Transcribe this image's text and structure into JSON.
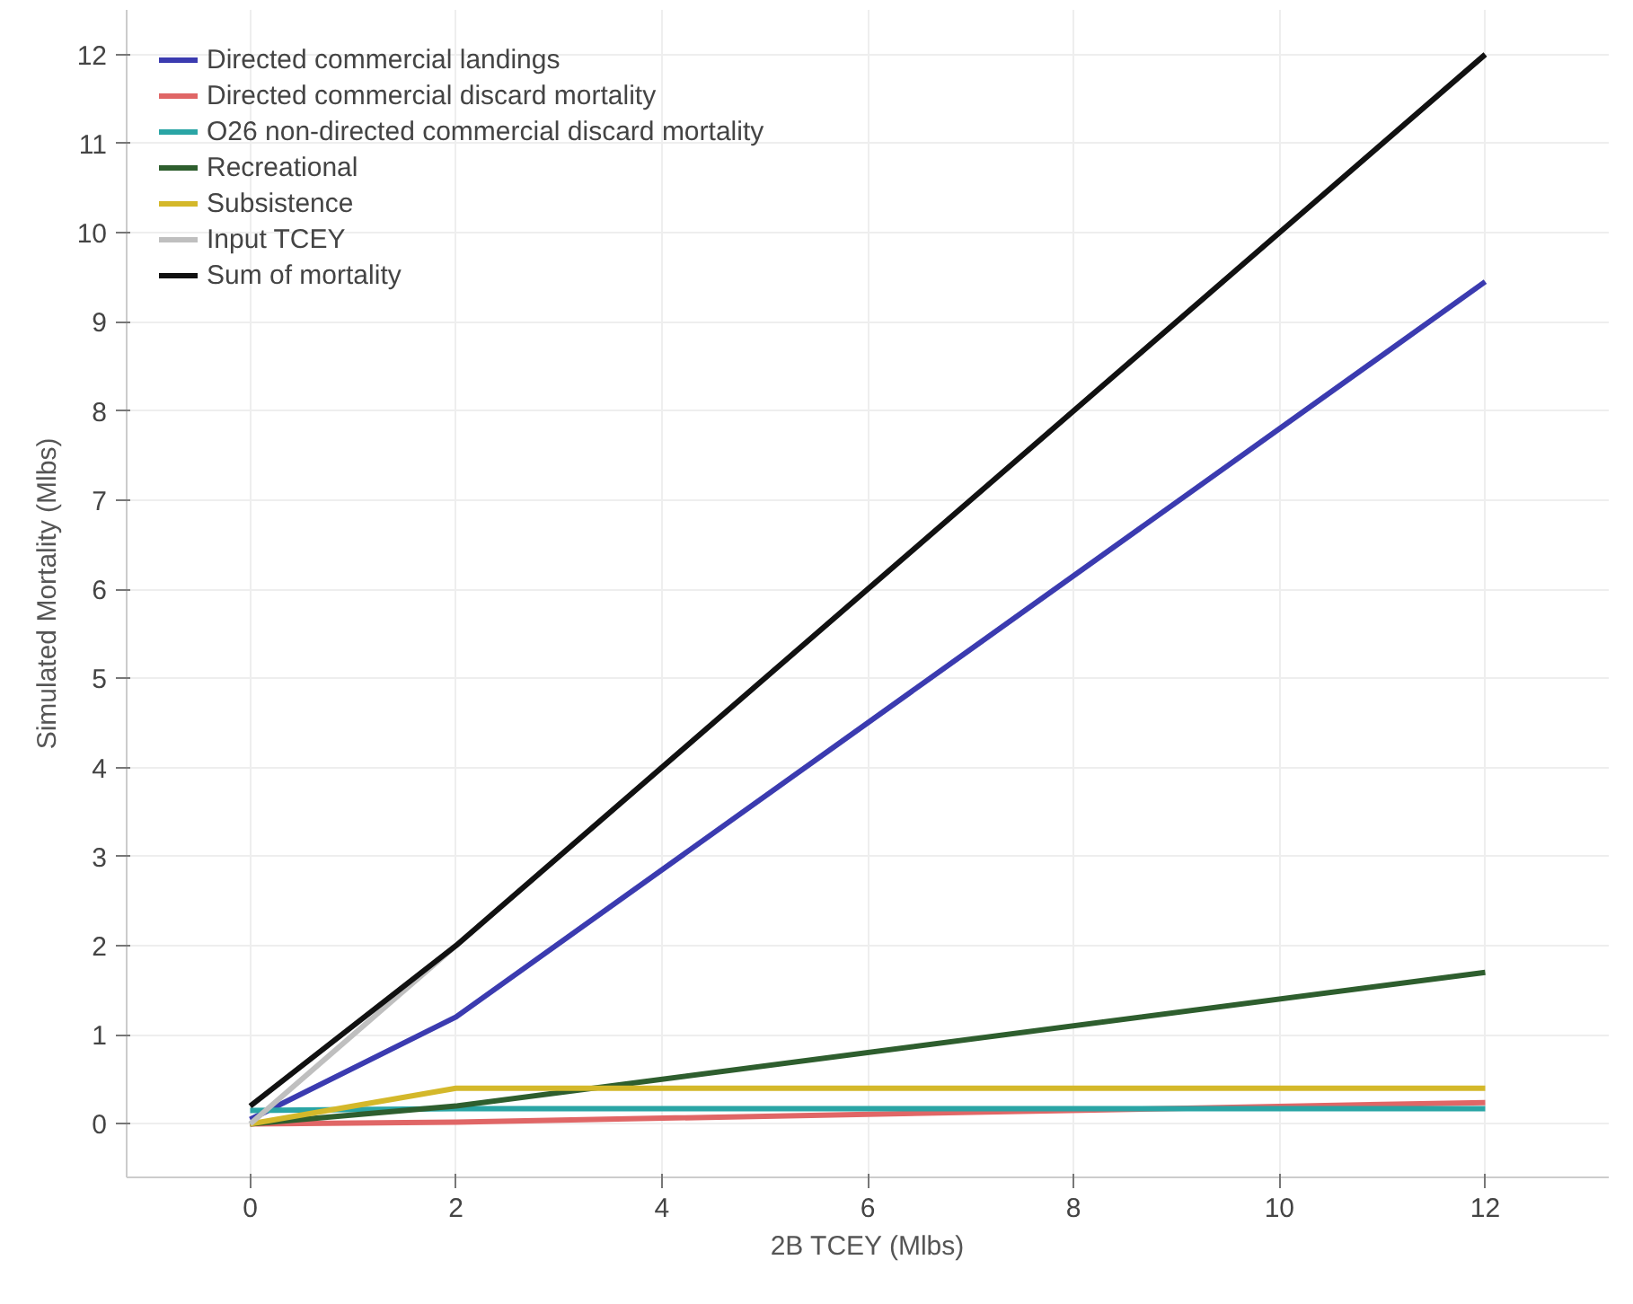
{
  "chart_data": {
    "type": "line",
    "xlabel": "2B TCEY (Mlbs)",
    "ylabel": "Simulated Mortality (Mlbs)",
    "x": [
      0,
      2,
      12
    ],
    "series": [
      {
        "name": "Directed commercial landings",
        "color": "#3b3bb0",
        "values": [
          0.05,
          1.2,
          9.45
        ]
      },
      {
        "name": "Directed commercial discard mortality",
        "color": "#e06666",
        "values": [
          0,
          0.02,
          0.24
        ]
      },
      {
        "name": "O26 non-directed commercial discard mortality",
        "color": "#2aa5a5",
        "values": [
          0.15,
          0.17,
          0.17
        ]
      },
      {
        "name": "Recreational",
        "color": "#2e5e2e",
        "values": [
          0,
          0.2,
          1.7
        ]
      },
      {
        "name": "Subsistence",
        "color": "#d4b82a",
        "values": [
          0,
          0.4,
          0.4
        ]
      },
      {
        "name": "Input TCEY",
        "color": "#bfbfbf",
        "values": [
          0,
          2,
          12
        ]
      },
      {
        "name": "Sum of mortality",
        "color": "#111111",
        "values": [
          0.2,
          2,
          12
        ]
      }
    ],
    "xlim": [
      -1.2,
      13.2
    ],
    "ylim": [
      -0.6,
      12.5
    ],
    "xticks": [
      0,
      2,
      4,
      6,
      8,
      10,
      12
    ],
    "yticks": [
      0,
      1,
      2,
      3,
      4,
      5,
      6,
      7,
      8,
      9,
      10,
      11,
      12
    ],
    "grid": true,
    "legend": "top left",
    "line_style": "solid",
    "marker": "none"
  }
}
